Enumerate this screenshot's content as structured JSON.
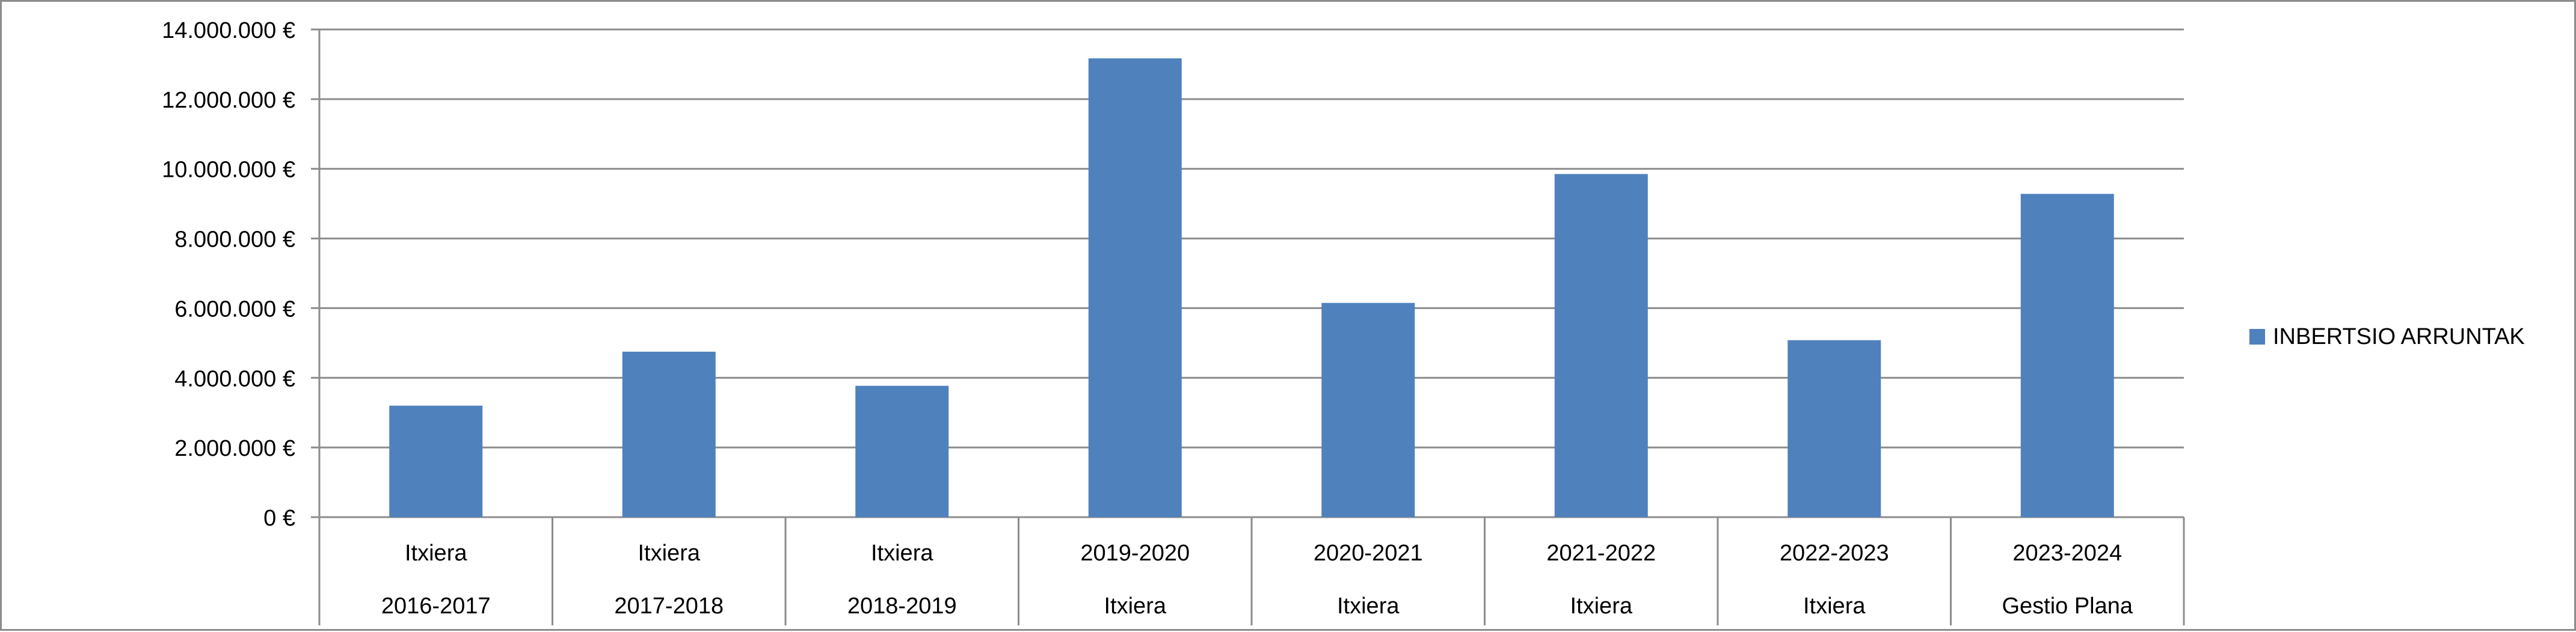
{
  "chart_data": {
    "type": "bar",
    "categories": [
      [
        "Itxiera",
        "2016-2017"
      ],
      [
        "Itxiera",
        "2017-2018"
      ],
      [
        "Itxiera",
        "2018-2019"
      ],
      [
        "2019-2020",
        "Itxiera"
      ],
      [
        "2020-2021",
        "Itxiera"
      ],
      [
        "2021-2022",
        "Itxiera"
      ],
      [
        "2022-2023",
        "Itxiera"
      ],
      [
        "2023-2024",
        "Gestio Plana"
      ]
    ],
    "series": [
      {
        "name": "INBERTSIO ARRUNTAK",
        "color": "#4f81bd",
        "values": [
          3200000,
          4750000,
          3770000,
          13170000,
          6150000,
          9850000,
          5080000,
          9280000
        ]
      }
    ],
    "yticks": [
      "0 €",
      "2.000.000 €",
      "4.000.000 €",
      "6.000.000 €",
      "8.000.000 €",
      "10.000.000 €",
      "12.000.000 €",
      "14.000.000 €"
    ],
    "ylim": [
      0,
      14000000
    ],
    "ystep": 2000000,
    "title": "",
    "xlabel": "",
    "ylabel": "",
    "grid": true,
    "legend_position": "right",
    "colors": {
      "bar": "#4f81bd",
      "grid": "#8c8c8c",
      "frame": "#8c8c8c"
    }
  }
}
